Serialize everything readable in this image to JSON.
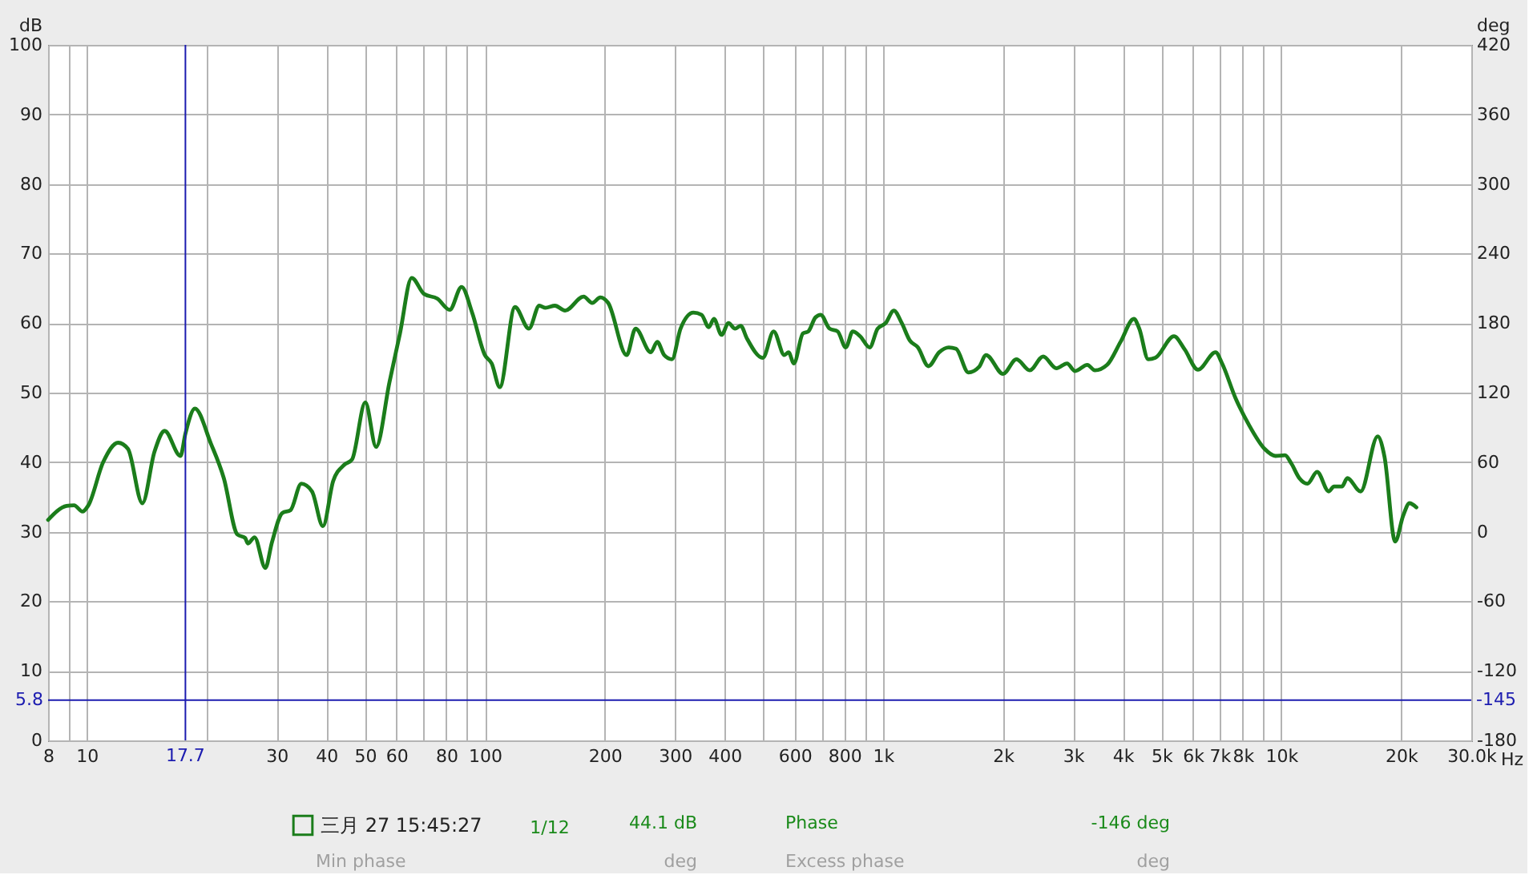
{
  "chart_data": {
    "type": "line",
    "xlabel": "Hz",
    "ylabel": "dB",
    "y2label": "deg",
    "log": "x",
    "xlim": [
      8,
      30000
    ],
    "xticks": [
      8,
      {
        "value": 9,
        "label": null
      },
      10,
      {
        "value": 20,
        "label": null
      },
      30,
      40,
      50,
      60,
      {
        "value": 70,
        "label": null
      },
      80,
      {
        "value": 90,
        "label": null
      },
      100,
      200,
      300,
      400,
      {
        "value": 500,
        "label": null
      },
      600,
      {
        "value": 700,
        "label": null
      },
      800,
      {
        "value": 900,
        "label": null
      },
      {
        "value": 1000,
        "label": "1k"
      },
      {
        "value": 2000,
        "label": "2k"
      },
      {
        "value": 3000,
        "label": "3k"
      },
      {
        "value": 4000,
        "label": "4k"
      },
      {
        "value": 5000,
        "label": "5k"
      },
      {
        "value": 6000,
        "label": "6k"
      },
      {
        "value": 7000,
        "label": "7k"
      },
      {
        "value": 8000,
        "label": "8k"
      },
      {
        "value": 9000,
        "label": null
      },
      {
        "value": 10000,
        "label": "10k"
      },
      {
        "value": 20000,
        "label": "20k"
      },
      {
        "value": 30000,
        "label": "30.0k"
      }
    ],
    "ylim": [
      0,
      100
    ],
    "yticks": [
      0,
      10,
      20,
      30,
      40,
      50,
      60,
      70,
      80,
      90,
      100
    ],
    "y2lim": [
      -180,
      420
    ],
    "y2ticks": [
      -180,
      -120,
      -60,
      0,
      60,
      120,
      180,
      240,
      300,
      360,
      420
    ],
    "grid": true,
    "legend": "bottom",
    "x": [
      8,
      8.9,
      9.3,
      9.76,
      10.1,
      11.0,
      12.0,
      12.7,
      13.8,
      14.8,
      15.7,
      17.2,
      17.7,
      18.7,
      20.5,
      22.1,
      23.9,
      25.0,
      25.4,
      26.4,
      28.1,
      29.2,
      31.0,
      32.5,
      34.6,
      36.8,
      39.2,
      41.6,
      44.3,
      46.4,
      50.1,
      53.3,
      57.6,
      61.2,
      65.5,
      70.3,
      76.0,
      81.6,
      87.4,
      92.9,
      100,
      104,
      109,
      119,
      129,
      137,
      142,
      150,
      159,
      177,
      186,
      195,
      204,
      227,
      239,
      261,
      271,
      282,
      295,
      310,
      334,
      350,
      365,
      376,
      393,
      409,
      425,
      439,
      455,
      499,
      531,
      565,
      579,
      597,
      629,
      649,
      676,
      697,
      734,
      769,
      806,
      839,
      876,
      925,
      969,
      1015,
      1064,
      1114,
      1167,
      1223,
      1300,
      1383,
      1462,
      1525,
      1638,
      1742,
      1814,
      2001,
      2162,
      2335,
      2523,
      2724,
      2897,
      3035,
      3258,
      3403,
      3653,
      3948,
      4264,
      4399,
      4633,
      4826,
      5376,
      5720,
      6176,
      6840,
      7100,
      7676,
      8286,
      9084,
      9665,
      10220,
      10600,
      11100,
      11630,
      12300,
      13160,
      13560,
      14200,
      14650,
      15820,
      17460,
      18160,
      19320,
      20230,
      20990,
      21840
    ],
    "series": [
      {
        "name": "三月 27 15:45:27",
        "color": "#1b7d1b",
        "values": [
          31.7,
          33.7,
          33.8,
          32.9,
          33.8,
          40.0,
          42.8,
          41.9,
          34.1,
          41.5,
          44.5,
          40.9,
          44.1,
          47.7,
          42.7,
          37.7,
          29.6,
          29.1,
          28.3,
          29.2,
          24.8,
          28.5,
          32.7,
          33.1,
          36.9,
          35.8,
          30.8,
          37.3,
          39.6,
          40.4,
          48.6,
          42.2,
          51.5,
          58.5,
          66.5,
          64.2,
          63.5,
          61.9,
          65.2,
          61.5,
          55.4,
          54.2,
          50.8,
          62.3,
          59.2,
          62.5,
          62.2,
          62.5,
          61.8,
          63.8,
          62.9,
          63.7,
          62.9,
          55.4,
          59.2,
          55.8,
          57.3,
          55.4,
          54.8,
          59.2,
          61.5,
          61.2,
          59.4,
          60.6,
          58.3,
          60.0,
          59.2,
          59.6,
          57.8,
          55.0,
          58.8,
          55.4,
          55.8,
          54.2,
          58.5,
          58.8,
          60.8,
          61.2,
          59.2,
          58.8,
          56.5,
          58.8,
          58.1,
          56.5,
          59.2,
          60.0,
          61.8,
          60.0,
          57.5,
          56.5,
          53.8,
          55.8,
          56.5,
          56.3,
          52.9,
          53.7,
          55.4,
          52.7,
          54.8,
          53.2,
          55.2,
          53.5,
          54.2,
          53.1,
          54.0,
          53.2,
          54.0,
          57.3,
          60.6,
          59.2,
          54.8,
          55.0,
          58.1,
          56.2,
          53.3,
          55.8,
          54.2,
          49.2,
          45.4,
          41.9,
          40.9,
          41.0,
          39.8,
          37.7,
          36.9,
          38.6,
          35.8,
          36.5,
          36.5,
          37.7,
          35.8,
          43.7,
          40.8,
          28.6,
          32.3,
          34.1,
          33.5
        ]
      }
    ],
    "ref_lines": [
      {
        "axis": "x",
        "value": 17.7,
        "label": "17.7",
        "color": "#1c1cb0"
      },
      {
        "axis": "y",
        "value": 5.8,
        "label": "5.8",
        "color": "#1c1cb0"
      }
    ],
    "annotations": [
      "1/12",
      "44.1 dB",
      "Phase",
      "-146 deg",
      "Min phase",
      "deg",
      "Excess phase",
      "deg",
      {
        "text": "-145",
        "x": 30000,
        "y": 5.8
      }
    ]
  }
}
